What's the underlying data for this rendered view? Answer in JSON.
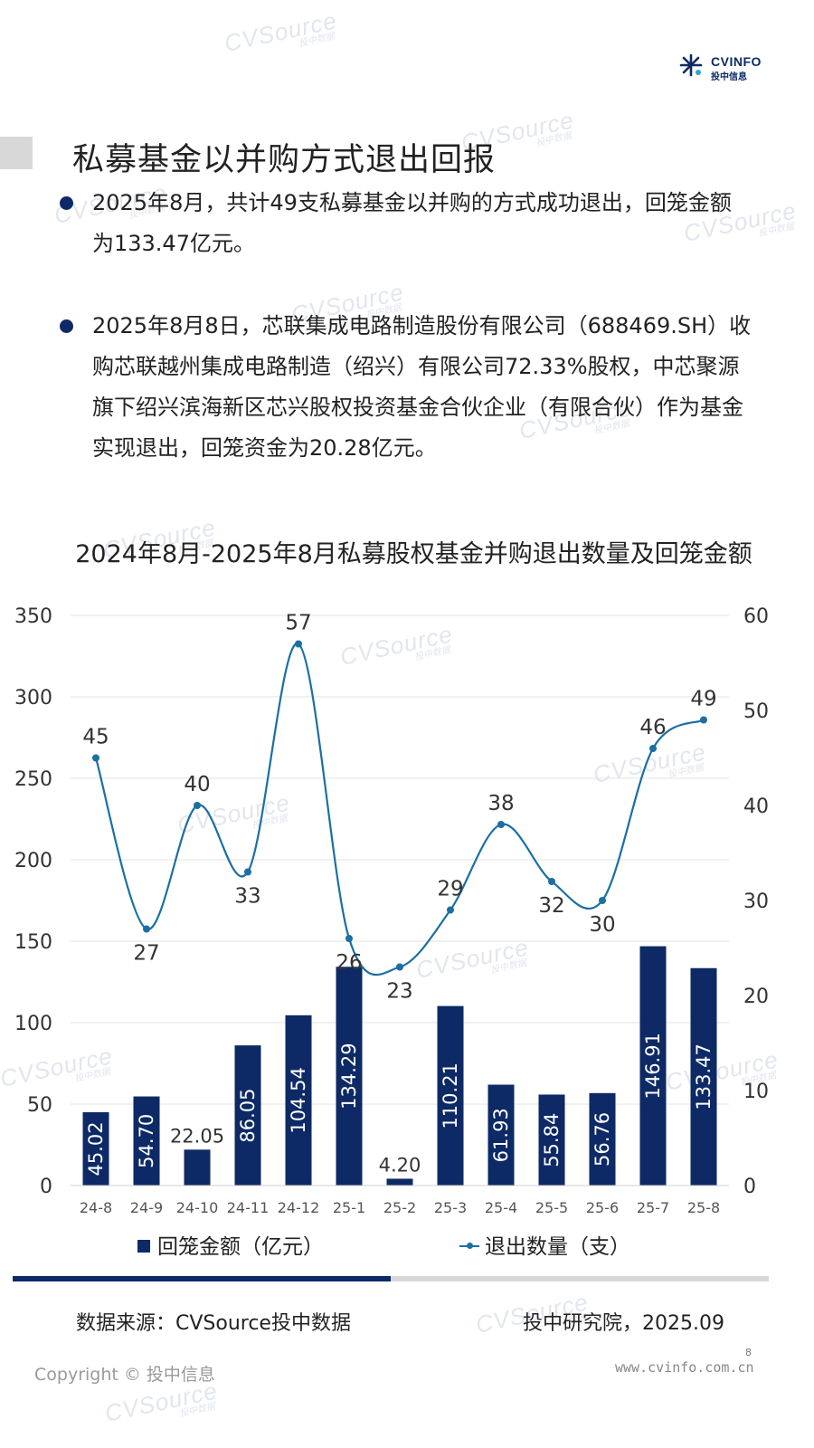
{
  "watermark": {
    "main": "CVSource",
    "sub": "投中数据"
  },
  "logo": {
    "line1": "CVINFO",
    "line2": "投中信息"
  },
  "page_title": "私募基金以并购方式退出回报",
  "bullets": [
    "2025年8月，共计49支私募基金以并购的方式成功退出，回笼金额为133.47亿元。",
    "2025年8月8日，芯联集成电路制造股份有限公司（688469.SH）收购芯联越州集成电路制造（绍兴）有限公司72.33%股权，中芯聚源旗下绍兴滨海新区芯兴股权投资基金合伙企业（有限合伙）作为基金实现退出，回笼资金为20.28亿元。"
  ],
  "chart_data": {
    "type": "bar+line",
    "title": "2024年8月-2025年8月私募股权基金并购退出数量及回笼金额",
    "categories": [
      "24-8",
      "24-9",
      "24-10",
      "24-11",
      "24-12",
      "25-1",
      "25-2",
      "25-3",
      "25-4",
      "25-5",
      "25-6",
      "25-7",
      "25-8"
    ],
    "series": [
      {
        "name": "回笼金额（亿元）",
        "type": "bar",
        "axis": "left",
        "color": "#0d2a66",
        "values": [
          45.02,
          54.7,
          22.05,
          86.05,
          104.54,
          134.29,
          4.2,
          110.21,
          61.93,
          55.84,
          56.76,
          146.91,
          133.47
        ],
        "labels": [
          "45.02",
          "54.70",
          "22.05",
          "86.05",
          "104.54",
          "134.29",
          "4.20",
          "110.21",
          "61.93",
          "55.84",
          "56.76",
          "146.91",
          "133.47"
        ]
      },
      {
        "name": "退出数量（支）",
        "type": "line",
        "smooth": true,
        "axis": "right",
        "color": "#1b6fa3",
        "values": [
          45,
          27,
          40,
          33,
          57,
          26,
          23,
          29,
          38,
          32,
          30,
          46,
          49
        ]
      }
    ],
    "y_left": {
      "min": 0,
      "max": 350,
      "ticks": [
        0,
        50,
        100,
        150,
        200,
        250,
        300,
        350
      ]
    },
    "y_right": {
      "min": 0,
      "max": 60,
      "ticks": [
        0,
        10,
        20,
        30,
        40,
        50,
        60
      ]
    },
    "grid": true,
    "legend_position": "bottom"
  },
  "footer": {
    "source": "数据来源：CVSource投中数据",
    "org": "投中研究院，2025.09",
    "copyright": "Copyright © 投中信息",
    "page_number": "8",
    "url": "www.cvinfo.com.cn"
  }
}
